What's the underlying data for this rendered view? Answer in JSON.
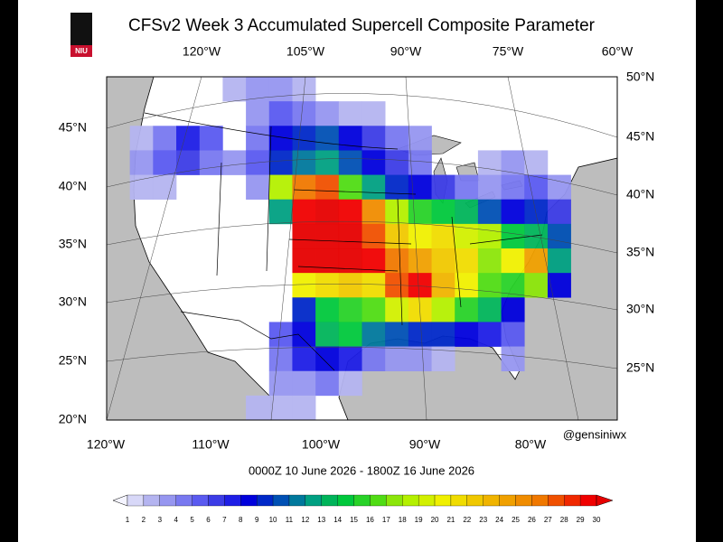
{
  "title": "CFSv2 Week 3 Accumulated Supercell Composite Parameter",
  "logo": "NIU",
  "top_lon_labels": [
    "120°W",
    "105°W",
    "90°W",
    "75°W",
    "60°W"
  ],
  "right_lat_labels": [
    "50°N",
    "45°N",
    "40°N",
    "35°N",
    "30°N",
    "25°N"
  ],
  "left_lat_labels": [
    "45°N",
    "40°N",
    "35°N",
    "30°N",
    "25°N",
    "20°N"
  ],
  "bottom_lon_labels": [
    "120°W",
    "110°W",
    "100°W",
    "90°W",
    "80°W"
  ],
  "credit": "@gensiniwx",
  "valid_period": "0000Z 10  June  2026  - 1800Z 16  June  2026",
  "field": {
    "rows": [
      [
        0,
        0,
        0,
        0,
        0,
        2,
        3,
        3,
        2,
        0,
        0,
        0,
        0,
        0,
        0,
        0,
        0,
        0,
        0,
        0,
        0,
        0
      ],
      [
        0,
        0,
        0,
        0,
        0,
        0,
        3,
        5,
        4,
        3,
        2,
        2,
        0,
        0,
        0,
        0,
        0,
        0,
        0,
        0,
        0,
        0
      ],
      [
        0,
        2,
        4,
        7,
        5,
        0,
        4,
        8,
        9,
        10,
        8,
        6,
        4,
        3,
        0,
        0,
        0,
        0,
        0,
        0,
        0,
        0
      ],
      [
        0,
        3,
        5,
        6,
        4,
        3,
        5,
        9,
        11,
        12,
        10,
        8,
        6,
        4,
        0,
        0,
        2,
        3,
        2,
        0,
        0,
        0
      ],
      [
        0,
        2,
        2,
        0,
        0,
        0,
        3,
        18,
        26,
        27,
        16,
        12,
        9,
        8,
        6,
        4,
        3,
        4,
        5,
        3,
        0,
        0
      ],
      [
        0,
        0,
        0,
        0,
        0,
        0,
        0,
        12,
        29,
        30,
        29,
        25,
        18,
        15,
        14,
        13,
        10,
        8,
        9,
        6,
        0,
        0
      ],
      [
        0,
        0,
        0,
        0,
        0,
        0,
        0,
        0,
        30,
        30,
        30,
        27,
        22,
        20,
        21,
        19,
        18,
        14,
        13,
        10,
        0,
        0
      ],
      [
        0,
        0,
        0,
        0,
        0,
        0,
        0,
        0,
        30,
        30,
        30,
        29,
        26,
        24,
        22,
        21,
        17,
        20,
        24,
        12,
        0,
        0
      ],
      [
        0,
        0,
        0,
        0,
        0,
        0,
        0,
        0,
        20,
        21,
        22,
        21,
        27,
        29,
        23,
        20,
        16,
        15,
        17,
        8,
        0,
        0
      ],
      [
        0,
        0,
        0,
        0,
        0,
        0,
        0,
        0,
        9,
        14,
        15,
        16,
        19,
        21,
        18,
        15,
        13,
        8,
        0,
        0,
        0,
        0
      ],
      [
        0,
        0,
        0,
        0,
        0,
        0,
        0,
        5,
        8,
        13,
        14,
        11,
        10,
        9,
        9,
        8,
        7,
        5,
        0,
        0,
        0,
        0
      ],
      [
        0,
        0,
        0,
        0,
        0,
        0,
        0,
        4,
        7,
        8,
        7,
        4,
        3,
        3,
        2,
        0,
        0,
        3,
        0,
        0,
        0,
        0
      ],
      [
        0,
        0,
        0,
        0,
        0,
        0,
        0,
        3,
        3,
        4,
        2,
        0,
        0,
        0,
        0,
        0,
        0,
        0,
        0,
        0,
        0,
        0
      ],
      [
        0,
        0,
        0,
        0,
        0,
        0,
        2,
        2,
        2,
        0,
        0,
        0,
        0,
        0,
        0,
        0,
        0,
        0,
        0,
        0,
        0,
        0
      ]
    ]
  },
  "colorbar": {
    "labels": [
      1,
      2,
      3,
      4,
      5,
      6,
      7,
      8,
      9,
      10,
      11,
      12,
      13,
      14,
      15,
      16,
      17,
      18,
      19,
      20,
      21,
      22,
      23,
      24,
      25,
      26,
      27,
      28,
      29,
      30
    ],
    "colors": [
      "#f4f4ff",
      "#d8d8f8",
      "#b4b4f0",
      "#9696f0",
      "#7878f0",
      "#5a5af0",
      "#3c3ce6",
      "#1e1ee6",
      "#0000dc",
      "#0028c8",
      "#0050b4",
      "#00789c",
      "#00a082",
      "#00b45a",
      "#00c83c",
      "#28d228",
      "#50dc14",
      "#8ce60a",
      "#b4f000",
      "#d2f000",
      "#f0f000",
      "#f0dc00",
      "#f0c800",
      "#f0b400",
      "#f0a000",
      "#f08c00",
      "#f07800",
      "#f05000",
      "#f02800",
      "#f00000",
      "#e60000"
    ]
  }
}
